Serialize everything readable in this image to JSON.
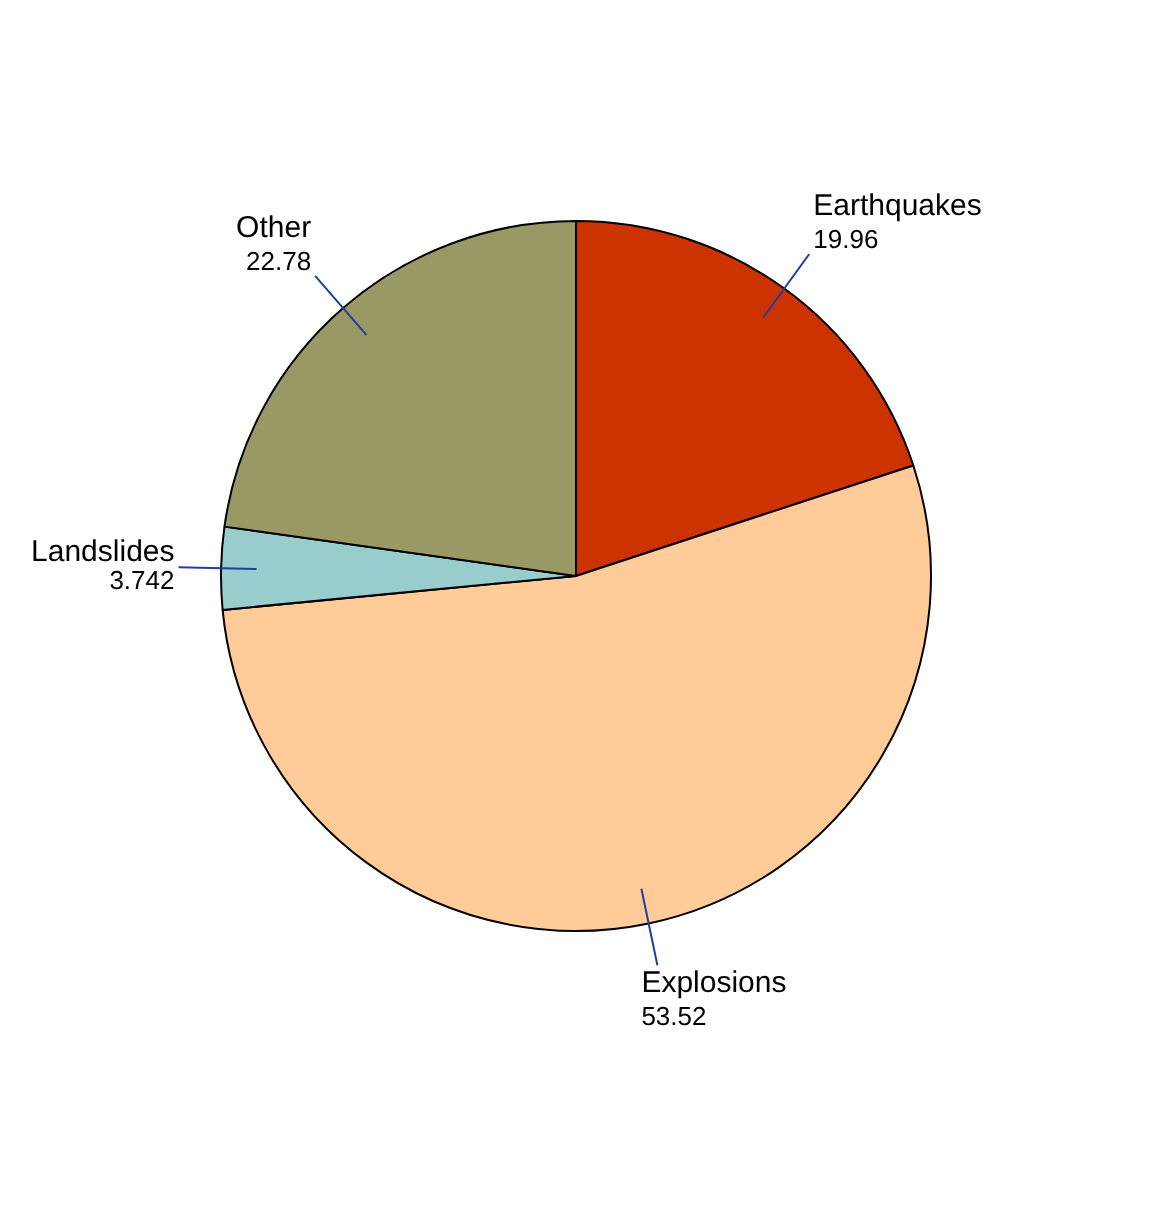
{
  "chart_data": {
    "type": "pie",
    "categories": [
      "Earthquakes",
      "Explosions",
      "Landslides",
      "Other"
    ],
    "values": [
      19.96,
      53.52,
      3.742,
      22.78
    ],
    "colors": [
      "#cc3300",
      "#ffcc99",
      "#99cccc",
      "#999966"
    ],
    "data_labels": true,
    "legend": false
  }
}
